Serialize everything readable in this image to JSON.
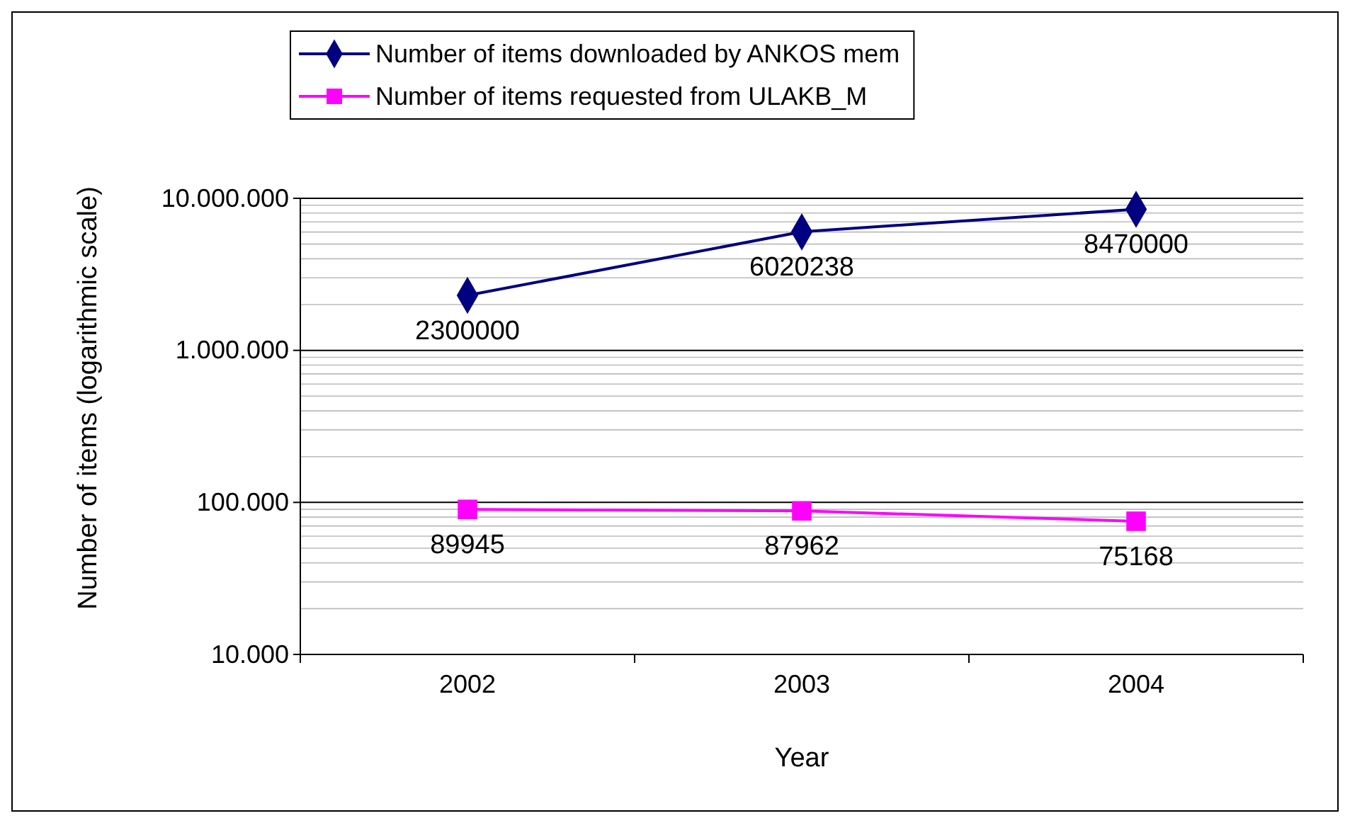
{
  "chart_data": {
    "type": "line",
    "xlabel": "Year",
    "ylabel": "Number of items (logarithmic scale)",
    "categories": [
      "2002",
      "2003",
      "2004"
    ],
    "series": [
      {
        "name": "Number of items downloaded by ANKOS mem",
        "color": "#000080",
        "marker": "diamond",
        "values": [
          2300000,
          6020238,
          8470000
        ]
      },
      {
        "name": "Number of items requested from ULAKB_M",
        "color": "#ff00ff",
        "marker": "square",
        "values": [
          89945,
          87962,
          75168
        ]
      }
    ],
    "log": true,
    "ylim": [
      10000,
      10000000
    ],
    "yticks": [
      {
        "value": 10000,
        "label": "10.000"
      },
      {
        "value": 100000,
        "label": "100.000"
      },
      {
        "value": 1000000,
        "label": "1.000.000"
      },
      {
        "value": 10000000,
        "label": "10.000.000"
      }
    ],
    "grid": "y",
    "legend": "top",
    "data_labels": true
  }
}
